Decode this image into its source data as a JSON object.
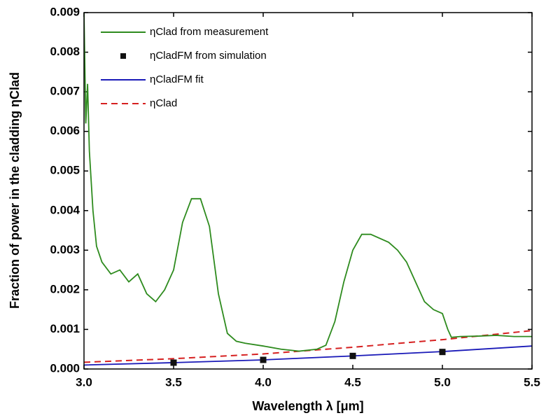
{
  "chart_data": {
    "type": "line",
    "xlabel": "Wavelength λ [μm]",
    "ylabel": "Fraction of power in the cladding ηClad",
    "xlim": [
      3.0,
      5.5
    ],
    "ylim": [
      0,
      0.009
    ],
    "xticks": [
      {
        "value": 3.0,
        "label": "3.0"
      },
      {
        "value": 3.5,
        "label": "3.5"
      },
      {
        "value": 4.0,
        "label": "4.0"
      },
      {
        "value": 4.5,
        "label": "4.5"
      },
      {
        "value": 5.0,
        "label": "5.0"
      },
      {
        "value": 5.5,
        "label": "5.5"
      }
    ],
    "yticks": [
      {
        "value": 0,
        "label": "0.000"
      },
      {
        "value": 0.001,
        "label": "0.001"
      },
      {
        "value": 0.002,
        "label": "0.002"
      },
      {
        "value": 0.003,
        "label": "0.003"
      },
      {
        "value": 0.004,
        "label": "0.004"
      },
      {
        "value": 0.005,
        "label": "0.005"
      },
      {
        "value": 0.006,
        "label": "0.006"
      },
      {
        "value": 0.007,
        "label": "0.007"
      },
      {
        "value": 0.008,
        "label": "0.008"
      },
      {
        "value": 0.009,
        "label": "0.009"
      }
    ],
    "legend": "upper left",
    "series": [
      {
        "name": "ηClad from measurement",
        "color": "#2e8b1e",
        "style": "solid",
        "x": [
          3.0,
          3.01,
          3.02,
          3.03,
          3.05,
          3.07,
          3.1,
          3.15,
          3.2,
          3.25,
          3.3,
          3.35,
          3.4,
          3.45,
          3.5,
          3.55,
          3.6,
          3.65,
          3.7,
          3.75,
          3.8,
          3.85,
          3.9,
          4.0,
          4.1,
          4.2,
          4.3,
          4.35,
          4.4,
          4.45,
          4.5,
          4.55,
          4.6,
          4.7,
          4.75,
          4.8,
          4.85,
          4.9,
          4.95,
          5.0,
          5.03,
          5.05,
          5.1,
          5.2,
          5.3,
          5.4,
          5.5
        ],
        "values": [
          0.009,
          0.0062,
          0.0072,
          0.0055,
          0.004,
          0.0031,
          0.0027,
          0.0024,
          0.0025,
          0.0022,
          0.0024,
          0.0019,
          0.0017,
          0.002,
          0.0025,
          0.0037,
          0.0043,
          0.0043,
          0.0036,
          0.0019,
          0.0009,
          0.0007,
          0.00065,
          0.00058,
          0.0005,
          0.00045,
          0.0005,
          0.0006,
          0.0012,
          0.0022,
          0.003,
          0.0034,
          0.0034,
          0.0032,
          0.003,
          0.0027,
          0.0022,
          0.0017,
          0.0015,
          0.0014,
          0.001,
          0.0008,
          0.00082,
          0.00083,
          0.00085,
          0.00082,
          0.00082
        ]
      },
      {
        "name": "ηCladFM from simulation",
        "color": "#111111",
        "style": "marker",
        "x": [
          3.5,
          4.0,
          4.5,
          5.0
        ],
        "values": [
          0.00016,
          0.00023,
          0.00033,
          0.00043
        ]
      },
      {
        "name": "ηCladFM fit",
        "color": "#1a1ab8",
        "style": "solid",
        "x": [
          3.0,
          3.5,
          4.0,
          4.5,
          5.0,
          5.5
        ],
        "values": [
          0.0001,
          0.00016,
          0.00023,
          0.00033,
          0.00044,
          0.00058
        ]
      },
      {
        "name": "ηClad",
        "color": "#d62020",
        "style": "dashed",
        "x": [
          3.0,
          3.5,
          4.0,
          4.5,
          5.0,
          5.5
        ],
        "values": [
          0.00017,
          0.00026,
          0.00038,
          0.00055,
          0.00074,
          0.00097
        ]
      }
    ]
  }
}
